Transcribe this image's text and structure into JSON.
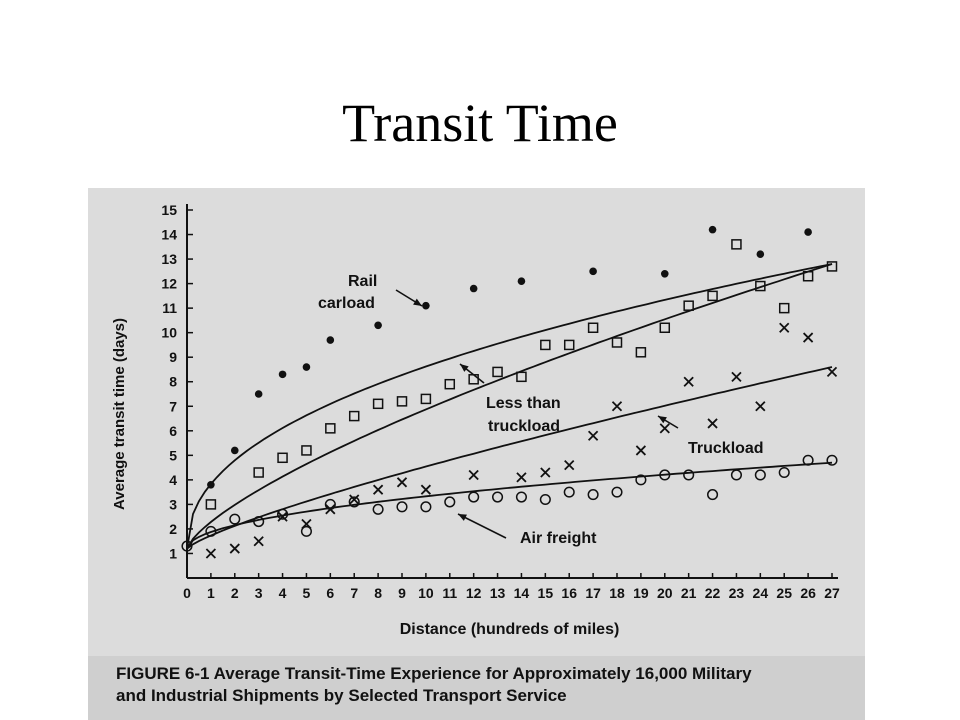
{
  "slide": {
    "title": "Transit Time"
  },
  "chart_data": {
    "type": "scatter",
    "title": "",
    "xlabel": "Distance (hundreds of miles)",
    "ylabel": "Average transit time (days)",
    "xlim": [
      0,
      27
    ],
    "ylim": [
      0,
      15
    ],
    "x_ticks": [
      "0",
      "1",
      "2",
      "3",
      "4",
      "5",
      "6",
      "7",
      "8",
      "9",
      "10",
      "11",
      "12",
      "13",
      "14",
      "15",
      "16",
      "17",
      "18",
      "19",
      "20",
      "21",
      "22",
      "23",
      "24",
      "25",
      "26",
      "27"
    ],
    "y_ticks": [
      "1",
      "2",
      "3",
      "4",
      "5",
      "6",
      "7",
      "8",
      "9",
      "10",
      "11",
      "12",
      "13",
      "14",
      "15"
    ],
    "grid": false,
    "legend": "labels on curves",
    "annotations": [
      {
        "text": "Rail",
        "series": "rail"
      },
      {
        "text": "carload",
        "series": "rail"
      },
      {
        "text": "Less than",
        "series": "ltl"
      },
      {
        "text": "truckload",
        "series": "ltl"
      },
      {
        "text": "Truckload",
        "series": "tl"
      },
      {
        "text": "Air freight",
        "series": "air"
      }
    ],
    "series": [
      {
        "id": "rail",
        "marker": "dot",
        "points": [
          [
            1,
            3.8
          ],
          [
            2,
            5.2
          ],
          [
            3,
            7.5
          ],
          [
            4,
            8.3
          ],
          [
            5,
            8.6
          ],
          [
            6,
            9.7
          ],
          [
            8,
            10.3
          ],
          [
            10,
            11.1
          ],
          [
            12,
            11.8
          ],
          [
            14,
            12.1
          ],
          [
            17,
            12.5
          ],
          [
            20,
            12.4
          ],
          [
            22,
            14.2
          ],
          [
            24,
            13.2
          ],
          [
            26,
            14.1
          ]
        ]
      },
      {
        "id": "ltl",
        "marker": "square",
        "points": [
          [
            1,
            3.0
          ],
          [
            3,
            4.3
          ],
          [
            4,
            4.9
          ],
          [
            5,
            5.2
          ],
          [
            6,
            6.1
          ],
          [
            7,
            6.6
          ],
          [
            8,
            7.1
          ],
          [
            9,
            7.2
          ],
          [
            10,
            7.3
          ],
          [
            11,
            7.9
          ],
          [
            12,
            8.1
          ],
          [
            13,
            8.4
          ],
          [
            14,
            8.2
          ],
          [
            15,
            9.5
          ],
          [
            16,
            9.5
          ],
          [
            17,
            10.2
          ],
          [
            18,
            9.6
          ],
          [
            19,
            9.2
          ],
          [
            20,
            10.2
          ],
          [
            21,
            11.1
          ],
          [
            22,
            11.5
          ],
          [
            23,
            13.6
          ],
          [
            24,
            11.9
          ],
          [
            25,
            11.0
          ],
          [
            26,
            12.3
          ],
          [
            27,
            12.7
          ]
        ]
      },
      {
        "id": "tl",
        "marker": "x",
        "points": [
          [
            1,
            1.0
          ],
          [
            2,
            1.2
          ],
          [
            3,
            1.5
          ],
          [
            4,
            2.5
          ],
          [
            5,
            2.2
          ],
          [
            6,
            2.8
          ],
          [
            7,
            3.2
          ],
          [
            8,
            3.6
          ],
          [
            9,
            3.9
          ],
          [
            10,
            3.6
          ],
          [
            12,
            4.2
          ],
          [
            14,
            4.1
          ],
          [
            15,
            4.3
          ],
          [
            16,
            4.6
          ],
          [
            17,
            5.8
          ],
          [
            18,
            7.0
          ],
          [
            19,
            5.2
          ],
          [
            20,
            6.1
          ],
          [
            21,
            8.0
          ],
          [
            22,
            6.3
          ],
          [
            23,
            8.2
          ],
          [
            24,
            7.0
          ],
          [
            25,
            10.2
          ],
          [
            26,
            9.8
          ],
          [
            27,
            8.4
          ]
        ]
      },
      {
        "id": "air",
        "marker": "circle",
        "points": [
          [
            0,
            1.3
          ],
          [
            1,
            1.9
          ],
          [
            2,
            2.4
          ],
          [
            3,
            2.3
          ],
          [
            4,
            2.6
          ],
          [
            5,
            1.9
          ],
          [
            6,
            3.0
          ],
          [
            7,
            3.1
          ],
          [
            8,
            2.8
          ],
          [
            9,
            2.9
          ],
          [
            10,
            2.9
          ],
          [
            11,
            3.1
          ],
          [
            12,
            3.3
          ],
          [
            13,
            3.3
          ],
          [
            14,
            3.3
          ],
          [
            15,
            3.2
          ],
          [
            16,
            3.5
          ],
          [
            17,
            3.4
          ],
          [
            18,
            3.5
          ],
          [
            19,
            4.0
          ],
          [
            20,
            4.2
          ],
          [
            21,
            4.2
          ],
          [
            22,
            3.4
          ],
          [
            23,
            4.2
          ],
          [
            24,
            4.2
          ],
          [
            25,
            4.3
          ],
          [
            26,
            4.8
          ],
          [
            27,
            4.8
          ]
        ]
      }
    ]
  },
  "figure": {
    "caption_line1": "FIGURE 6-1  Average Transit-Time Experience for Approximately 16,000 Military",
    "caption_line2": "and Industrial Shipments by Selected Transport Service"
  }
}
